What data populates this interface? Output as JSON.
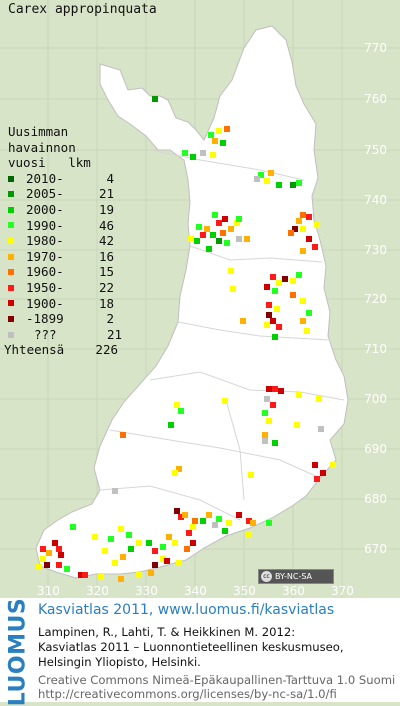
{
  "map": {
    "species": "Carex appropinquata",
    "legend_header": [
      "Uusimman",
      "havainnon",
      "vuosi   lkm"
    ],
    "legend": [
      {
        "label": "2010-",
        "count": "4",
        "color": "#006400"
      },
      {
        "label": "2005-",
        "count": "21",
        "color": "#009a00"
      },
      {
        "label": "2000-",
        "count": "19",
        "color": "#00d000"
      },
      {
        "label": "1990-",
        "count": "46",
        "color": "#22ff22"
      },
      {
        "label": "1980-",
        "count": "42",
        "color": "#ffff00"
      },
      {
        "label": "1970-",
        "count": "16",
        "color": "#ffb000"
      },
      {
        "label": "1960-",
        "count": "15",
        "color": "#ff7000"
      },
      {
        "label": "1950-",
        "count": "22",
        "color": "#ff1a1a"
      },
      {
        "label": "1900-",
        "count": "18",
        "color": "#cc0000"
      },
      {
        "label": "-1899",
        "count": "2",
        "color": "#800000"
      },
      {
        "label": "???",
        "count": "21",
        "color": "#c0c0c0"
      }
    ],
    "total_label": "Yhteensä",
    "total_count": "226",
    "y_ticks": [
      "770",
      "760",
      "750",
      "740",
      "730",
      "720",
      "710",
      "700",
      "690",
      "680",
      "670"
    ],
    "x_ticks": [
      "310",
      "320",
      "330",
      "340",
      "350",
      "360",
      "370"
    ],
    "license_badge": "BY-NC-SA",
    "license_symbol": "cc"
  },
  "footer": {
    "logo": "LUOMUS",
    "title": "Kasviatlas 2011, www.luomus.fi/kasviatlas",
    "citation_1": "Lampinen, R., Lahti, T. & Heikkinen M. 2012:",
    "citation_2": "Kasviatlas 2011 – Luonnontieteellinen keskusmuseo,",
    "citation_3": "Helsingin Yliopisto, Helsinki.",
    "license_1": "Creative Commons Nimeä-Epäkaupallinen-Tarttuva 1.0 Suomi",
    "license_2": "http://creativecommons.org/licenses/by-nc-sa/1.0/fi"
  }
}
